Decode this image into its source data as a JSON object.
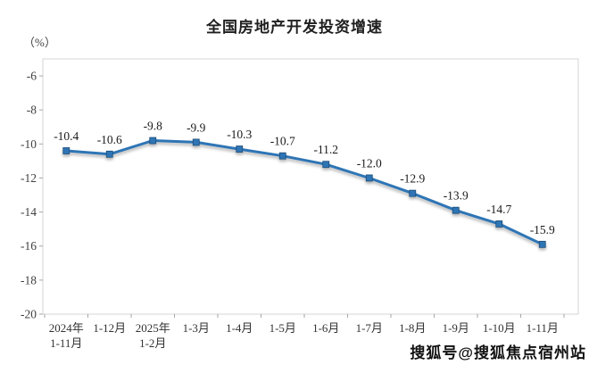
{
  "header": {
    "title": "全国房地产开发投资增速",
    "unit_label": "（%）"
  },
  "chart_data": {
    "type": "line",
    "title": "全国房地产开发投资增速",
    "ylabel": "（%）",
    "xlabel": "",
    "categories": [
      "2024年\n1-11月",
      "1-12月",
      "2025年\n1-2月",
      "1-3月",
      "1-4月",
      "1-5月",
      "1-6月",
      "1-7月",
      "1-8月",
      "1-9月",
      "1-10月",
      "1-11月"
    ],
    "values": [
      -10.4,
      -10.6,
      -9.8,
      -9.9,
      -10.3,
      -10.7,
      -11.2,
      -12.0,
      -12.9,
      -13.9,
      -14.7,
      -15.9
    ],
    "data_labels": [
      "-10.4",
      "-10.6",
      "-9.8",
      "-9.9",
      "-10.3",
      "-10.7",
      "-11.2",
      "-12.0",
      "-12.9",
      "-13.9",
      "-14.7",
      "-15.9"
    ],
    "yticks": [
      -6,
      -8,
      -10,
      -12,
      -14,
      -16,
      -18,
      -20
    ],
    "ylim": [
      -20,
      -5
    ],
    "grid": false,
    "legend_position": "none",
    "line_color": "#2E74B5",
    "marker_color": "#2E74B5",
    "marker_edge_color": "#1F4E79",
    "marker": "square",
    "axis_text_color": "#404040",
    "label_text_color": "#1a1a1a",
    "border_color": "#d6d6d6",
    "tick_color": "#a6a6a6"
  },
  "watermark": {
    "text": "搜狐号@搜狐焦点宿州站"
  }
}
